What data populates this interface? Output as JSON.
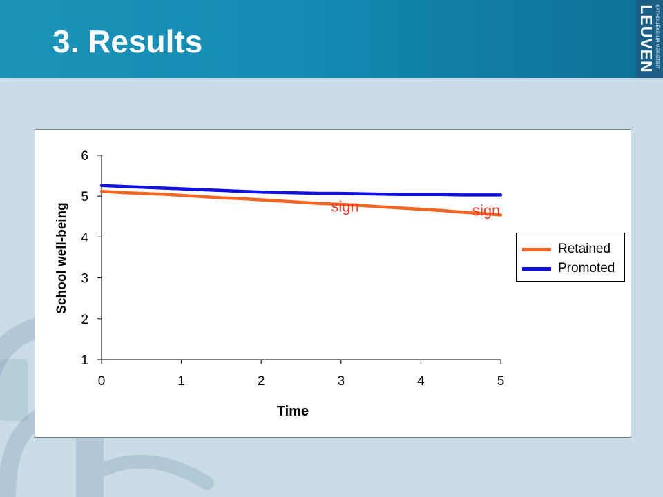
{
  "slide": {
    "title": "3. Results"
  },
  "logo": {
    "small_text": "KATHOLIEKE UNIVERSITEIT",
    "big_text": "LEUVEN"
  },
  "colors": {
    "header": "#1a8fb6",
    "background": "#c9dce8",
    "retained": "#f26522",
    "promoted": "#1010e0",
    "annotation": "#e8382a"
  },
  "chart_data": {
    "type": "line",
    "xlabel": "Time",
    "ylabel": "School well-being",
    "xlim": [
      0,
      5
    ],
    "ylim": [
      1,
      6
    ],
    "xticks": [
      0,
      1,
      2,
      3,
      4,
      5
    ],
    "yticks": [
      1,
      2,
      3,
      4,
      5,
      6
    ],
    "grid": false,
    "legend_position": "right",
    "series": [
      {
        "name": "Retained",
        "color": "#f26522",
        "x": [
          0,
          0.25,
          0.5,
          0.75,
          1,
          1.25,
          1.5,
          1.75,
          2,
          2.25,
          2.5,
          2.75,
          3,
          3.25,
          3.5,
          3.75,
          4,
          4.25,
          4.5,
          4.75,
          5
        ],
        "y": [
          5.12,
          5.09,
          5.07,
          5.05,
          5.02,
          4.99,
          4.96,
          4.94,
          4.91,
          4.88,
          4.85,
          4.82,
          4.8,
          4.77,
          4.74,
          4.71,
          4.68,
          4.65,
          4.61,
          4.58,
          4.54
        ]
      },
      {
        "name": "Promoted",
        "color": "#1010e0",
        "x": [
          0,
          0.25,
          0.5,
          0.75,
          1,
          1.25,
          1.5,
          1.75,
          2,
          2.25,
          2.5,
          2.75,
          3,
          3.25,
          3.5,
          3.75,
          4,
          4.25,
          4.5,
          4.75,
          5
        ],
        "y": [
          5.26,
          5.24,
          5.22,
          5.2,
          5.18,
          5.16,
          5.14,
          5.12,
          5.1,
          5.09,
          5.08,
          5.07,
          5.07,
          5.06,
          5.05,
          5.04,
          5.04,
          5.04,
          5.03,
          5.03,
          5.03
        ]
      }
    ],
    "annotations": [
      {
        "text": "sign",
        "x": 3.05,
        "y": 4.62
      },
      {
        "text": "sign",
        "x": 4.82,
        "y": 4.52
      }
    ]
  }
}
